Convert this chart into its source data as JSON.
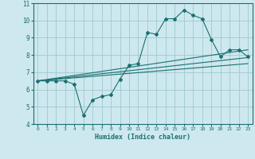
{
  "xlabel": "Humidex (Indice chaleur)",
  "bg_color": "#cde8ee",
  "grid_color": "#a0c8d0",
  "line_color": "#1a7070",
  "xlim": [
    -0.5,
    23.5
  ],
  "ylim": [
    4,
    11
  ],
  "xticks": [
    0,
    1,
    2,
    3,
    4,
    5,
    6,
    7,
    8,
    9,
    10,
    11,
    12,
    13,
    14,
    15,
    16,
    17,
    18,
    19,
    20,
    21,
    22,
    23
  ],
  "yticks": [
    4,
    5,
    6,
    7,
    8,
    9,
    10,
    11
  ],
  "curve1_x": [
    0,
    1,
    2,
    3,
    4,
    5,
    6,
    7,
    8,
    9,
    10,
    11,
    12,
    13,
    14,
    15,
    16,
    17,
    18,
    19,
    20,
    21,
    22,
    23
  ],
  "curve1_y": [
    6.5,
    6.5,
    6.5,
    6.5,
    6.3,
    4.5,
    5.4,
    5.6,
    5.7,
    6.6,
    7.4,
    7.5,
    9.3,
    9.2,
    10.1,
    10.1,
    10.6,
    10.3,
    10.1,
    8.9,
    7.9,
    8.3,
    8.3,
    7.9
  ],
  "curve2_x": [
    0,
    23
  ],
  "curve2_y": [
    6.5,
    8.3
  ],
  "curve3_x": [
    0,
    23
  ],
  "curve3_y": [
    6.5,
    7.85
  ],
  "curve4_x": [
    0,
    23
  ],
  "curve4_y": [
    6.5,
    7.5
  ]
}
